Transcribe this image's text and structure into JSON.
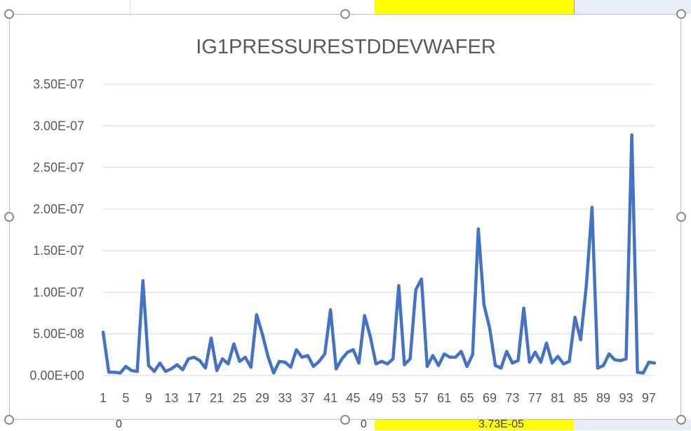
{
  "chart_data": {
    "type": "line",
    "title": "IG1PRESSURESTDDEVWAFER",
    "xlabel": "",
    "ylabel": "",
    "ylim": [
      0,
      3.5e-07
    ],
    "grid": true,
    "legend": "none",
    "line_color": "#4472C4",
    "y_ticks": [
      "0.00E+00",
      "5.00E-08",
      "1.00E-07",
      "1.50E-07",
      "2.00E-07",
      "2.50E-07",
      "3.00E-07",
      "3.50E-07"
    ],
    "x_tick_labels": [
      "1",
      "5",
      "9",
      "13",
      "17",
      "21",
      "25",
      "29",
      "33",
      "37",
      "41",
      "45",
      "49",
      "53",
      "57",
      "61",
      "65",
      "69",
      "73",
      "77",
      "81",
      "85",
      "89",
      "93",
      "97"
    ],
    "x": [
      1,
      2,
      3,
      4,
      5,
      6,
      7,
      8,
      9,
      10,
      11,
      12,
      13,
      14,
      15,
      16,
      17,
      18,
      19,
      20,
      21,
      22,
      23,
      24,
      25,
      26,
      27,
      28,
      29,
      30,
      31,
      32,
      33,
      34,
      35,
      36,
      37,
      38,
      39,
      40,
      41,
      42,
      43,
      44,
      45,
      46,
      47,
      48,
      49,
      50,
      51,
      52,
      53,
      54,
      55,
      56,
      57,
      58,
      59,
      60,
      61,
      62,
      63,
      64,
      65,
      66,
      67,
      68,
      69,
      70,
      71,
      72,
      73,
      74,
      75,
      76,
      77,
      78,
      79,
      80,
      81,
      82,
      83,
      84,
      85,
      86,
      87,
      88,
      89,
      90,
      91,
      92,
      93,
      94,
      95,
      96,
      97,
      98
    ],
    "series": [
      {
        "values": [
          5.2e-08,
          4e-09,
          4e-09,
          3e-09,
          1.1e-08,
          6e-09,
          5e-09,
          1.14e-07,
          1.2e-08,
          5e-09,
          1.5e-08,
          5e-09,
          8e-09,
          1.3e-08,
          7e-09,
          2e-08,
          2.2e-08,
          1.8e-08,
          9e-09,
          4.5e-08,
          6e-09,
          2e-08,
          1.4e-08,
          3.8e-08,
          1.7e-08,
          2.2e-08,
          1e-08,
          7.3e-08,
          5e-08,
          2.3e-08,
          3e-09,
          1.7e-08,
          1.6e-08,
          1e-08,
          3.1e-08,
          2.2e-08,
          2.4e-08,
          1.1e-08,
          1.7e-08,
          2.6e-08,
          7.9e-08,
          8e-09,
          2e-08,
          2.8e-08,
          3.1e-08,
          1.5e-08,
          7.2e-08,
          4.7e-08,
          1.4e-08,
          1.7e-08,
          1.4e-08,
          2e-08,
          1.08e-07,
          1.3e-08,
          2e-08,
          1.03e-07,
          1.16e-07,
          1.1e-08,
          2.4e-08,
          1.2e-08,
          2.6e-08,
          2.2e-08,
          2.2e-08,
          2.9e-08,
          1.1e-08,
          2.5e-08,
          1.76e-07,
          8.5e-08,
          5.7e-08,
          1.2e-08,
          9e-09,
          2.9e-08,
          1.5e-08,
          1.8e-08,
          8.1e-08,
          1.6e-08,
          2.8e-08,
          1.6e-08,
          3.9e-08,
          1.5e-08,
          2.3e-08,
          1.4e-08,
          1.7e-08,
          7e-08,
          4.3e-08,
          1.08e-07,
          2.02e-07,
          9e-09,
          1.2e-08,
          2.6e-08,
          1.9e-08,
          1.8e-08,
          2e-08,
          2.89e-07,
          4e-09,
          3e-09,
          1.6e-08,
          1.5e-08
        ]
      }
    ]
  },
  "background_cells": {
    "bottom_left_value_1": "0",
    "bottom_left_value_2": "0",
    "bottom_right_value": "3.73E-05",
    "highlight_color": "#FFFF00"
  }
}
